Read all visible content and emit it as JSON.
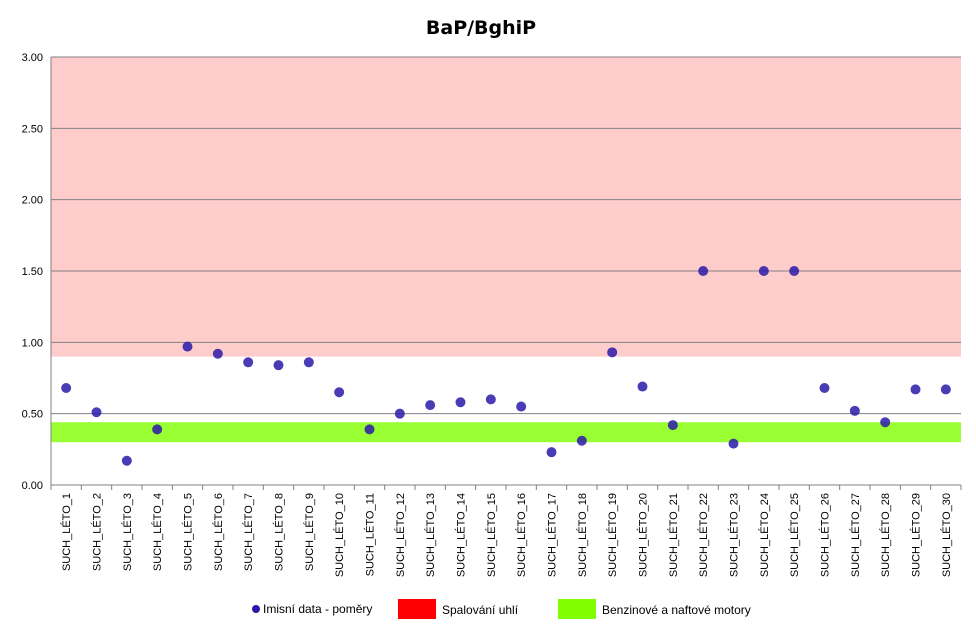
{
  "chart_data": {
    "type": "scatter",
    "title": "BaP/BghiP",
    "xlabel": "",
    "ylabel": "",
    "ylim": [
      0,
      3
    ],
    "yticks": [
      "0.00",
      "0.50",
      "1.00",
      "1.50",
      "2.00",
      "2.50",
      "3.00"
    ],
    "grid": true,
    "legend_position": "bottom",
    "categories": [
      "SUCH_LÉTO_1",
      "SUCH_LÉTO_2",
      "SUCH_LÉTO_3",
      "SUCH_LÉTO_4",
      "SUCH_LÉTO_5",
      "SUCH_LÉTO_6",
      "SUCH_LÉTO_7",
      "SUCH_LÉTO_8",
      "SUCH_LÉTO_9",
      "SUCH_LÉTO_10",
      "SUCH_LÉTO_11",
      "SUCH_LÉTO_12",
      "SUCH_LÉTO_13",
      "SUCH_LÉTO_14",
      "SUCH_LÉTO_15",
      "SUCH_LÉTO_16",
      "SUCH_LÉTO_17",
      "SUCH_LÉTO_18",
      "SUCH_LÉTO_19",
      "SUCH_LÉTO_20",
      "SUCH_LÉTO_21",
      "SUCH_LÉTO_22",
      "SUCH_LÉTO_23",
      "SUCH_LÉTO_24",
      "SUCH_LÉTO_25",
      "SUCH_LÉTO_26",
      "SUCH_LÉTO_27",
      "SUCH_LÉTO_28",
      "SUCH_LÉTO_29",
      "SUCH_LÉTO_30"
    ],
    "series": [
      {
        "name": "Imisní data  - poměry",
        "color": "#2a1aa8",
        "values": [
          0.68,
          0.51,
          0.17,
          0.39,
          0.97,
          0.92,
          0.86,
          0.84,
          0.86,
          0.65,
          0.39,
          0.5,
          0.56,
          0.58,
          0.6,
          0.55,
          0.23,
          0.31,
          0.93,
          0.69,
          0.42,
          1.5,
          0.29,
          1.5,
          1.5,
          0.68,
          0.52,
          0.44,
          0.67,
          0.67
        ]
      }
    ],
    "bands": [
      {
        "name": "Spalování uhlí",
        "from": 0.9,
        "to": 3.0,
        "color": "#ffcccc",
        "legend_color": "#ff0000"
      },
      {
        "name": "Benzinové a naftové motory",
        "from": 0.3,
        "to": 0.44,
        "color": "#99ff33",
        "legend_color": "#80ff00"
      }
    ]
  }
}
